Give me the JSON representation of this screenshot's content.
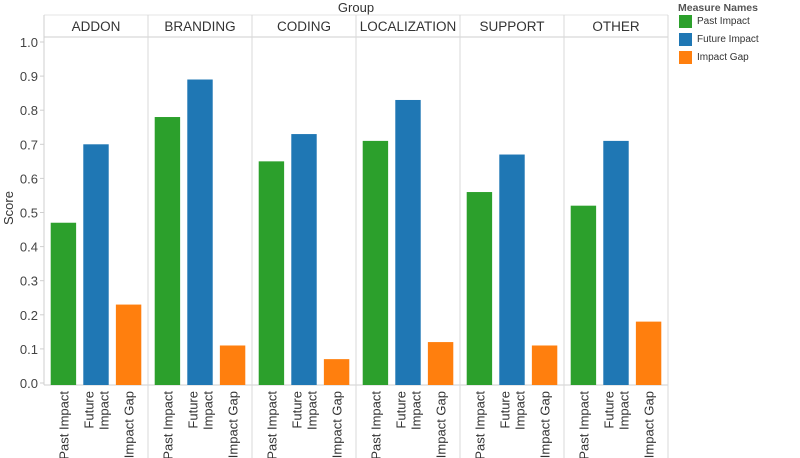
{
  "chart_data": {
    "type": "bar",
    "title": "",
    "column_header": "Group",
    "ylabel": "Score",
    "ylim": [
      0,
      1.0
    ],
    "yticks": [
      "0.0",
      "0.1",
      "0.2",
      "0.3",
      "0.4",
      "0.5",
      "0.6",
      "0.7",
      "0.8",
      "0.9",
      "1.0"
    ],
    "groups": [
      "ADDON",
      "BRANDING",
      "CODING",
      "LOCALIZATION",
      "SUPPORT",
      "OTHER"
    ],
    "measures": [
      "Past Impact",
      "Future Impact",
      "Impact Gap"
    ],
    "x_tick_labels": [
      [
        "Past Impact"
      ],
      [
        "Future",
        "Impact"
      ],
      [
        "Impact Gap"
      ]
    ],
    "series": [
      {
        "name": "Past Impact",
        "color": "#2ca02c",
        "values": [
          0.47,
          0.78,
          0.65,
          0.71,
          0.56,
          0.52
        ]
      },
      {
        "name": "Future Impact",
        "color": "#1f77b4",
        "values": [
          0.7,
          0.89,
          0.73,
          0.83,
          0.67,
          0.71
        ]
      },
      {
        "name": "Impact Gap",
        "color": "#ff7f0e",
        "values": [
          0.23,
          0.11,
          0.07,
          0.12,
          0.11,
          0.18
        ]
      }
    ],
    "legend": {
      "title": "Measure Names",
      "placement": "top-right",
      "items": [
        {
          "label": "Past Impact",
          "color": "#2ca02c"
        },
        {
          "label": "Future Impact",
          "color": "#1f77b4"
        },
        {
          "label": "Impact Gap",
          "color": "#ff7f0e"
        }
      ]
    },
    "grid": false
  }
}
